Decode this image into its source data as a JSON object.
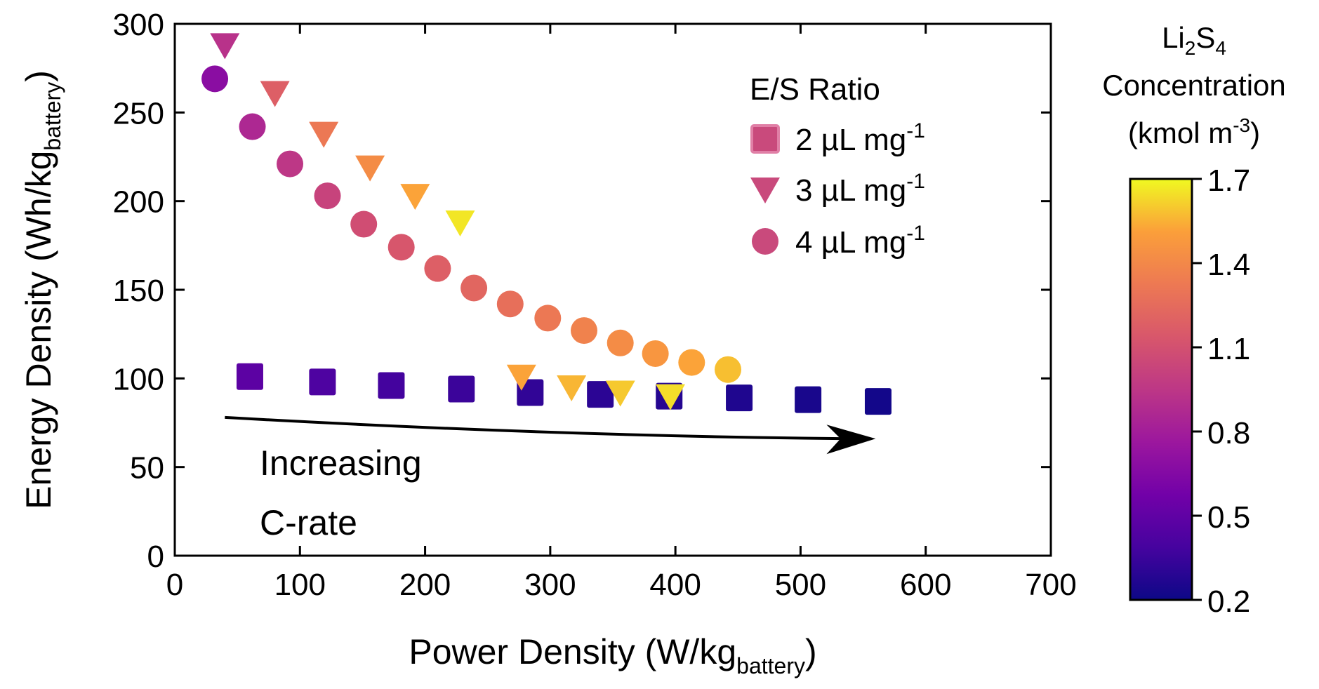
{
  "chart_data": {
    "type": "scatter",
    "xlabel": {
      "main": "Power Density (W/kg",
      "sub": "battery",
      "close": ")"
    },
    "ylabel": {
      "main": "Energy Density (Wh/kg",
      "sub": "battery",
      "close": ")"
    },
    "xlim": [
      0,
      700
    ],
    "ylim": [
      0,
      300
    ],
    "xticks": [
      0,
      100,
      200,
      300,
      400,
      500,
      600,
      700
    ],
    "yticks": [
      0,
      50,
      100,
      150,
      200,
      250,
      300
    ],
    "legend": {
      "title": "E/S Ratio",
      "placement": "top-right",
      "entries": [
        {
          "marker": "square",
          "prefix": "2 µL mg",
          "sup": "-1",
          "color": "#c94a7c"
        },
        {
          "marker": "triangle-down",
          "prefix": "3 µL mg",
          "sup": "-1",
          "color": "#c94a7c"
        },
        {
          "marker": "circle",
          "prefix": "4 µL mg",
          "sup": "-1",
          "color": "#c94a7c"
        }
      ]
    },
    "series": [
      {
        "name": "2 µL mg-1",
        "marker": "square",
        "x": [
          60,
          118,
          173,
          229,
          284,
          340,
          395,
          451,
          506,
          562
        ],
        "y": [
          101,
          98,
          96,
          94,
          92,
          91,
          90,
          89,
          88,
          87
        ],
        "concentration": [
          0.48,
          0.42,
          0.38,
          0.35,
          0.32,
          0.3,
          0.28,
          0.26,
          0.24,
          0.22
        ]
      },
      {
        "name": "3 µL mg-1",
        "marker": "triangle-down",
        "x": [
          40,
          80,
          119,
          156,
          192,
          228,
          277,
          317,
          356,
          396
        ],
        "y": [
          288,
          261,
          238,
          219,
          203,
          188,
          101,
          95,
          92,
          90
        ],
        "concentration": [
          0.92,
          1.18,
          1.32,
          1.42,
          1.52,
          1.66,
          1.52,
          1.56,
          1.6,
          1.64
        ]
      },
      {
        "name": "4 µL mg-1",
        "marker": "circle",
        "x": [
          32,
          62,
          92,
          122,
          151,
          181,
          210,
          239,
          268,
          298,
          327,
          356,
          384,
          413,
          442
        ],
        "y": [
          269,
          242,
          221,
          203,
          187,
          174,
          162,
          151,
          142,
          134,
          127,
          120,
          114,
          109,
          105
        ],
        "concentration": [
          0.68,
          0.86,
          0.95,
          1.02,
          1.08,
          1.13,
          1.18,
          1.22,
          1.27,
          1.32,
          1.37,
          1.42,
          1.47,
          1.52,
          1.58
        ]
      }
    ],
    "annotation": {
      "line1": "Increasing",
      "line2": "C-rate",
      "arrow_from": [
        40,
        78
      ],
      "arrow_to": [
        560,
        66
      ]
    },
    "colorbar": {
      "title_line1_parts": [
        "Li",
        "2",
        "S",
        "4"
      ],
      "title_line2": "Concentration",
      "title_line3": {
        "prefix": "(kmol m",
        "sup": "-3",
        "suffix": ")"
      },
      "range": [
        0.2,
        1.7
      ],
      "ticks": [
        "1.7",
        "1.4",
        "1.1",
        "0.8",
        "0.5",
        "0.2"
      ],
      "colormap": "plasma"
    }
  }
}
